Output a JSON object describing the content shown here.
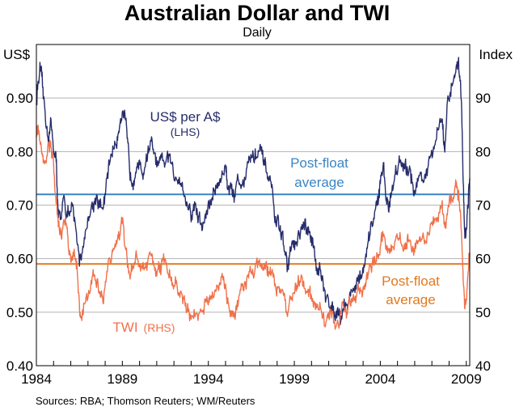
{
  "chart_data": {
    "type": "line",
    "title": "Australian Dollar and TWI",
    "subtitle": "Daily",
    "left_axis": {
      "unit": "US$",
      "range": [
        0.4,
        1.0
      ],
      "ticks": [
        "0.40",
        "0.50",
        "0.60",
        "0.70",
        "0.80",
        "0.90"
      ]
    },
    "right_axis": {
      "unit": "Index",
      "range": [
        40,
        100
      ],
      "ticks": [
        "40",
        "50",
        "60",
        "70",
        "80",
        "90"
      ]
    },
    "x_axis": {
      "range": [
        1984.0,
        2009.2
      ],
      "ticks": [
        {
          "label": "1984",
          "value": 1984.0
        },
        {
          "label": "1989",
          "value": 1989.0
        },
        {
          "label": "1994",
          "value": 1994.0
        },
        {
          "label": "1999",
          "value": 1999.0
        },
        {
          "label": "2004",
          "value": 2004.0
        },
        {
          "label": "2009",
          "value": 2009.0
        }
      ]
    },
    "grid": true,
    "series": [
      {
        "name": "US$ per A$",
        "axis": "left",
        "color": "#262c6b",
        "label_main": "US$ per A$",
        "label_sub": "(LHS)",
        "points": [
          [
            1984.0,
            0.89
          ],
          [
            1984.1,
            0.93
          ],
          [
            1984.25,
            0.95
          ],
          [
            1984.4,
            0.9
          ],
          [
            1984.55,
            0.86
          ],
          [
            1984.7,
            0.83
          ],
          [
            1984.85,
            0.85
          ],
          [
            1985.0,
            0.81
          ],
          [
            1985.15,
            0.78
          ],
          [
            1985.25,
            0.7
          ],
          [
            1985.45,
            0.66
          ],
          [
            1985.6,
            0.72
          ],
          [
            1985.75,
            0.69
          ],
          [
            1985.9,
            0.68
          ],
          [
            1986.1,
            0.69
          ],
          [
            1986.3,
            0.65
          ],
          [
            1986.5,
            0.6
          ],
          [
            1986.7,
            0.62
          ],
          [
            1986.9,
            0.66
          ],
          [
            1987.1,
            0.69
          ],
          [
            1987.3,
            0.7
          ],
          [
            1987.5,
            0.72
          ],
          [
            1987.7,
            0.7
          ],
          [
            1987.9,
            0.69
          ],
          [
            1988.1,
            0.74
          ],
          [
            1988.3,
            0.79
          ],
          [
            1988.5,
            0.81
          ],
          [
            1988.7,
            0.82
          ],
          [
            1988.85,
            0.86
          ],
          [
            1989.0,
            0.88
          ],
          [
            1989.15,
            0.86
          ],
          [
            1989.3,
            0.81
          ],
          [
            1989.45,
            0.76
          ],
          [
            1989.6,
            0.75
          ],
          [
            1989.8,
            0.78
          ],
          [
            1990.0,
            0.77
          ],
          [
            1990.2,
            0.76
          ],
          [
            1990.35,
            0.78
          ],
          [
            1990.5,
            0.8
          ],
          [
            1990.65,
            0.82
          ],
          [
            1990.8,
            0.8
          ],
          [
            1991.0,
            0.77
          ],
          [
            1991.2,
            0.78
          ],
          [
            1991.4,
            0.77
          ],
          [
            1991.6,
            0.79
          ],
          [
            1991.8,
            0.78
          ],
          [
            1992.0,
            0.75
          ],
          [
            1992.2,
            0.76
          ],
          [
            1992.4,
            0.75
          ],
          [
            1992.6,
            0.72
          ],
          [
            1992.8,
            0.7
          ],
          [
            1993.0,
            0.68
          ],
          [
            1993.2,
            0.7
          ],
          [
            1993.4,
            0.68
          ],
          [
            1993.6,
            0.66
          ],
          [
            1993.8,
            0.67
          ],
          [
            1994.0,
            0.7
          ],
          [
            1994.2,
            0.71
          ],
          [
            1994.4,
            0.73
          ],
          [
            1994.6,
            0.74
          ],
          [
            1994.8,
            0.76
          ],
          [
            1995.0,
            0.77
          ],
          [
            1995.1,
            0.75
          ],
          [
            1995.3,
            0.73
          ],
          [
            1995.5,
            0.72
          ],
          [
            1995.7,
            0.75
          ],
          [
            1995.9,
            0.74
          ],
          [
            1996.1,
            0.75
          ],
          [
            1996.3,
            0.78
          ],
          [
            1996.5,
            0.79
          ],
          [
            1996.7,
            0.79
          ],
          [
            1996.9,
            0.8
          ],
          [
            1997.1,
            0.79
          ],
          [
            1997.3,
            0.77
          ],
          [
            1997.5,
            0.75
          ],
          [
            1997.7,
            0.73
          ],
          [
            1997.9,
            0.67
          ],
          [
            1998.1,
            0.66
          ],
          [
            1998.3,
            0.64
          ],
          [
            1998.5,
            0.61
          ],
          [
            1998.6,
            0.58
          ],
          [
            1998.7,
            0.6
          ],
          [
            1998.9,
            0.63
          ],
          [
            1999.1,
            0.62
          ],
          [
            1999.3,
            0.64
          ],
          [
            1999.5,
            0.66
          ],
          [
            1999.7,
            0.65
          ],
          [
            1999.9,
            0.64
          ],
          [
            2000.1,
            0.63
          ],
          [
            2000.3,
            0.59
          ],
          [
            2000.5,
            0.58
          ],
          [
            2000.7,
            0.54
          ],
          [
            2000.9,
            0.52
          ],
          [
            2001.1,
            0.52
          ],
          [
            2001.3,
            0.5
          ],
          [
            2001.5,
            0.51
          ],
          [
            2001.7,
            0.49
          ],
          [
            2001.9,
            0.52
          ],
          [
            2002.1,
            0.51
          ],
          [
            2002.3,
            0.54
          ],
          [
            2002.5,
            0.55
          ],
          [
            2002.7,
            0.55
          ],
          [
            2002.9,
            0.57
          ],
          [
            2003.1,
            0.59
          ],
          [
            2003.3,
            0.62
          ],
          [
            2003.5,
            0.66
          ],
          [
            2003.7,
            0.69
          ],
          [
            2003.9,
            0.72
          ],
          [
            2004.05,
            0.75
          ],
          [
            2004.2,
            0.77
          ],
          [
            2004.35,
            0.71
          ],
          [
            2004.5,
            0.7
          ],
          [
            2004.7,
            0.73
          ],
          [
            2004.9,
            0.77
          ],
          [
            2005.1,
            0.78
          ],
          [
            2005.3,
            0.77
          ],
          [
            2005.5,
            0.76
          ],
          [
            2005.7,
            0.77
          ],
          [
            2005.9,
            0.74
          ],
          [
            2006.1,
            0.73
          ],
          [
            2006.3,
            0.76
          ],
          [
            2006.5,
            0.75
          ],
          [
            2006.7,
            0.76
          ],
          [
            2006.9,
            0.78
          ],
          [
            2007.1,
            0.8
          ],
          [
            2007.3,
            0.83
          ],
          [
            2007.5,
            0.86
          ],
          [
            2007.65,
            0.84
          ],
          [
            2007.75,
            0.79
          ],
          [
            2007.9,
            0.88
          ],
          [
            2008.1,
            0.91
          ],
          [
            2008.3,
            0.95
          ],
          [
            2008.45,
            0.96
          ],
          [
            2008.55,
            0.97
          ],
          [
            2008.65,
            0.93
          ],
          [
            2008.75,
            0.86
          ],
          [
            2008.85,
            0.71
          ],
          [
            2008.92,
            0.64
          ],
          [
            2009.0,
            0.66
          ],
          [
            2009.1,
            0.7
          ],
          [
            2009.2,
            0.75
          ]
        ]
      },
      {
        "name": "TWI",
        "axis": "right",
        "color": "#f0714a",
        "label_main": "TWI",
        "label_sub": "(RHS)",
        "points": [
          [
            1984.0,
            83
          ],
          [
            1984.1,
            85
          ],
          [
            1984.25,
            82
          ],
          [
            1984.4,
            79
          ],
          [
            1984.55,
            78
          ],
          [
            1984.7,
            81
          ],
          [
            1984.85,
            82
          ],
          [
            1985.0,
            78
          ],
          [
            1985.15,
            72
          ],
          [
            1985.25,
            67
          ],
          [
            1985.45,
            64
          ],
          [
            1985.6,
            68
          ],
          [
            1985.75,
            66
          ],
          [
            1985.9,
            62
          ],
          [
            1986.05,
            60
          ],
          [
            1986.2,
            61
          ],
          [
            1986.35,
            58
          ],
          [
            1986.5,
            51
          ],
          [
            1986.6,
            49
          ],
          [
            1986.75,
            52
          ],
          [
            1986.9,
            54
          ],
          [
            1987.1,
            55
          ],
          [
            1987.3,
            57
          ],
          [
            1987.5,
            56
          ],
          [
            1987.7,
            55
          ],
          [
            1987.9,
            53
          ],
          [
            1988.1,
            57
          ],
          [
            1988.3,
            60
          ],
          [
            1988.5,
            62
          ],
          [
            1988.7,
            64
          ],
          [
            1988.85,
            65
          ],
          [
            1989.0,
            67
          ],
          [
            1989.15,
            63
          ],
          [
            1989.3,
            59
          ],
          [
            1989.45,
            57
          ],
          [
            1989.6,
            58
          ],
          [
            1989.8,
            60
          ],
          [
            1990.0,
            59
          ],
          [
            1990.2,
            58
          ],
          [
            1990.4,
            59
          ],
          [
            1990.6,
            61
          ],
          [
            1990.8,
            59
          ],
          [
            1991.0,
            57
          ],
          [
            1991.2,
            58
          ],
          [
            1991.4,
            59
          ],
          [
            1991.6,
            58
          ],
          [
            1991.8,
            57
          ],
          [
            1992.0,
            56
          ],
          [
            1992.2,
            55
          ],
          [
            1992.4,
            53
          ],
          [
            1992.6,
            52
          ],
          [
            1992.8,
            51
          ],
          [
            1993.0,
            49
          ],
          [
            1993.2,
            50
          ],
          [
            1993.4,
            48
          ],
          [
            1993.6,
            49
          ],
          [
            1993.8,
            51
          ],
          [
            1994.0,
            52
          ],
          [
            1994.2,
            53
          ],
          [
            1994.4,
            54
          ],
          [
            1994.6,
            55
          ],
          [
            1994.8,
            56
          ],
          [
            1995.0,
            54
          ],
          [
            1995.15,
            52
          ],
          [
            1995.3,
            50
          ],
          [
            1995.45,
            49
          ],
          [
            1995.6,
            51
          ],
          [
            1995.8,
            53
          ],
          [
            1996.0,
            55
          ],
          [
            1996.2,
            56
          ],
          [
            1996.4,
            57
          ],
          [
            1996.6,
            58
          ],
          [
            1996.8,
            59
          ],
          [
            1997.0,
            58
          ],
          [
            1997.2,
            59
          ],
          [
            1997.4,
            58
          ],
          [
            1997.6,
            57
          ],
          [
            1997.8,
            56
          ],
          [
            1998.0,
            54
          ],
          [
            1998.2,
            55
          ],
          [
            1998.4,
            53
          ],
          [
            1998.6,
            49
          ],
          [
            1998.8,
            52
          ],
          [
            1999.0,
            54
          ],
          [
            1999.2,
            55
          ],
          [
            1999.4,
            56
          ],
          [
            1999.6,
            55
          ],
          [
            1999.8,
            54
          ],
          [
            2000.0,
            53
          ],
          [
            2000.2,
            52
          ],
          [
            2000.4,
            51
          ],
          [
            2000.6,
            49
          ],
          [
            2000.8,
            48
          ],
          [
            2001.0,
            50
          ],
          [
            2001.2,
            49
          ],
          [
            2001.4,
            48
          ],
          [
            2001.6,
            49
          ],
          [
            2001.8,
            51
          ],
          [
            2002.0,
            50
          ],
          [
            2002.2,
            52
          ],
          [
            2002.4,
            53
          ],
          [
            2002.6,
            53
          ],
          [
            2002.8,
            54
          ],
          [
            2003.0,
            55
          ],
          [
            2003.2,
            56
          ],
          [
            2003.4,
            58
          ],
          [
            2003.6,
            59
          ],
          [
            2003.8,
            61
          ],
          [
            2004.0,
            62
          ],
          [
            2004.2,
            64
          ],
          [
            2004.4,
            62
          ],
          [
            2004.6,
            61
          ],
          [
            2004.8,
            63
          ],
          [
            2005.0,
            64
          ],
          [
            2005.2,
            63
          ],
          [
            2005.4,
            62
          ],
          [
            2005.6,
            63
          ],
          [
            2005.8,
            62
          ],
          [
            2006.0,
            62
          ],
          [
            2006.2,
            63
          ],
          [
            2006.4,
            64
          ],
          [
            2006.6,
            63
          ],
          [
            2006.8,
            64
          ],
          [
            2007.0,
            66
          ],
          [
            2007.2,
            67
          ],
          [
            2007.4,
            69
          ],
          [
            2007.6,
            70
          ],
          [
            2007.75,
            66
          ],
          [
            2007.9,
            69
          ],
          [
            2008.1,
            71
          ],
          [
            2008.3,
            73
          ],
          [
            2008.45,
            74
          ],
          [
            2008.6,
            71
          ],
          [
            2008.72,
            64
          ],
          [
            2008.82,
            56
          ],
          [
            2008.92,
            51
          ],
          [
            2009.02,
            54
          ],
          [
            2009.12,
            58
          ],
          [
            2009.2,
            61
          ]
        ]
      }
    ],
    "reference_lines": [
      {
        "name": "US$ post-float average",
        "axis": "left",
        "value": 0.72,
        "color": "#3a85c4",
        "label_line1": "Post-float",
        "label_line2": "average"
      },
      {
        "name": "TWI post-float average",
        "axis": "right",
        "value": 59,
        "color": "#e07a1f",
        "label_line1": "Post-float",
        "label_line2": "average"
      }
    ]
  },
  "source_note": "Sources: RBA; Thomson Reuters; WM/Reuters"
}
